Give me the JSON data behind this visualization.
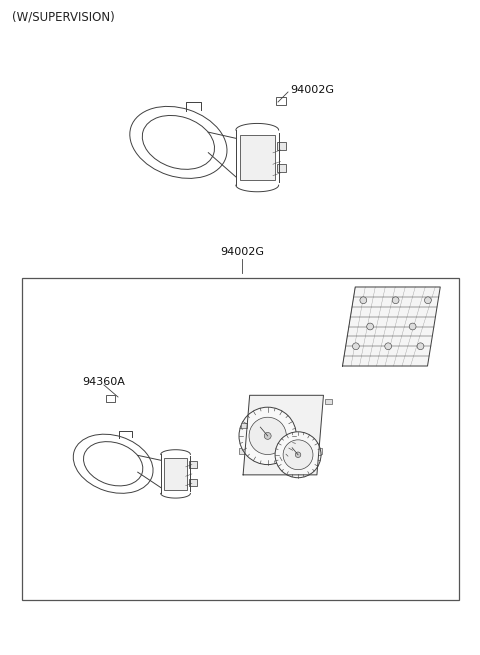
{
  "title": "(W/SUPERVISION)",
  "bg_color": "#ffffff",
  "line_color": "#404040",
  "label_94002G_top": "94002G",
  "label_94002G_bottom": "94002G",
  "label_94360A": "94360A",
  "fig_width": 4.8,
  "fig_height": 6.55,
  "dpi": 100
}
